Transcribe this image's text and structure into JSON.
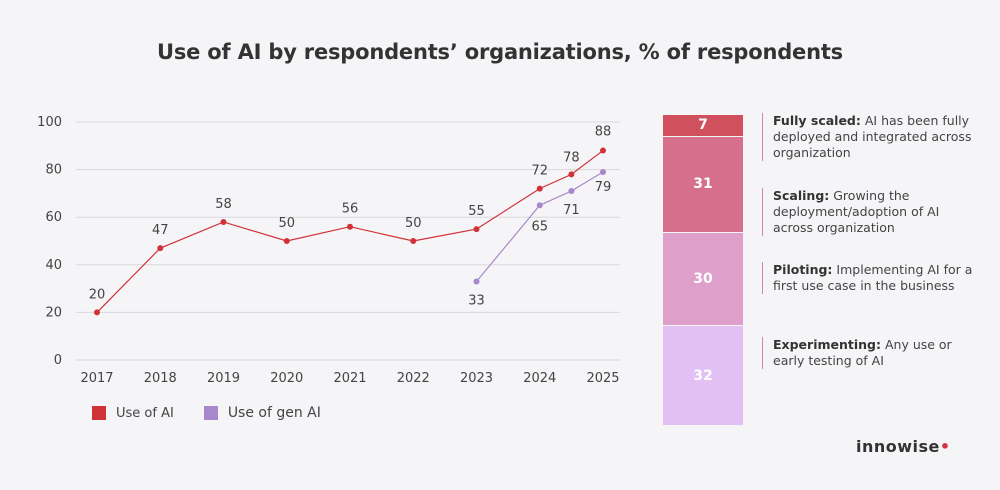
{
  "title": "Use of AI by respondents’ organizations, % of respondents",
  "chart_data": {
    "type": "line",
    "x": [
      "2017",
      "2018",
      "2019",
      "2020",
      "2021",
      "2022",
      "2023",
      "2024",
      "2024.5",
      "2025"
    ],
    "x_tick_labels": [
      "2017",
      "2018",
      "2019",
      "2020",
      "2021",
      "2022",
      "2023",
      "2024",
      "2025"
    ],
    "y_ticks": [
      "0",
      "20",
      "40",
      "60",
      "80",
      "100"
    ],
    "ylim": [
      0,
      100
    ],
    "grid": true,
    "legend_position": "bottom-left",
    "series": [
      {
        "name": "Use of AI",
        "color": "#d03238",
        "points": [
          {
            "x": 2017,
            "y": 20,
            "label": "20"
          },
          {
            "x": 2018,
            "y": 47,
            "label": "47"
          },
          {
            "x": 2019,
            "y": 58,
            "label": "58"
          },
          {
            "x": 2020,
            "y": 50,
            "label": "50"
          },
          {
            "x": 2021,
            "y": 56,
            "label": "56"
          },
          {
            "x": 2022,
            "y": 50,
            "label": "50"
          },
          {
            "x": 2023,
            "y": 55,
            "label": "55"
          },
          {
            "x": 2024,
            "y": 72,
            "label": "72"
          },
          {
            "x": 2024.5,
            "y": 78,
            "label": "78"
          },
          {
            "x": 2025,
            "y": 88,
            "label": "88"
          }
        ]
      },
      {
        "name": "Use of gen AI",
        "color": "#a888cc",
        "points": [
          {
            "x": 2023,
            "y": 33,
            "label": "33"
          },
          {
            "x": 2024,
            "y": 65,
            "label": "65"
          },
          {
            "x": 2024.5,
            "y": 71,
            "label": "71"
          },
          {
            "x": 2025,
            "y": 79,
            "label": "79"
          }
        ]
      }
    ],
    "stacked_bar": {
      "segments": [
        {
          "value": 7,
          "label": "7",
          "color": "#d0505e",
          "stage": "Fully scaled:",
          "description": "AI has been fully deployed and integrated across organization"
        },
        {
          "value": 31,
          "label": "31",
          "color": "#d66f8c",
          "stage": "Scaling:",
          "description": "Growing the deployment/adoption of AI across organization"
        },
        {
          "value": 30,
          "label": "30",
          "color": "#dea0cb",
          "stage": "Piloting:",
          "description": "Implementing AI for a first use case in the business"
        },
        {
          "value": 32,
          "label": "32",
          "color": "#e2c0f3",
          "stage": "Experimenting:",
          "description": "Any use or early testing of AI"
        }
      ]
    }
  },
  "logo": {
    "text": "innowise",
    "dot": "•"
  }
}
